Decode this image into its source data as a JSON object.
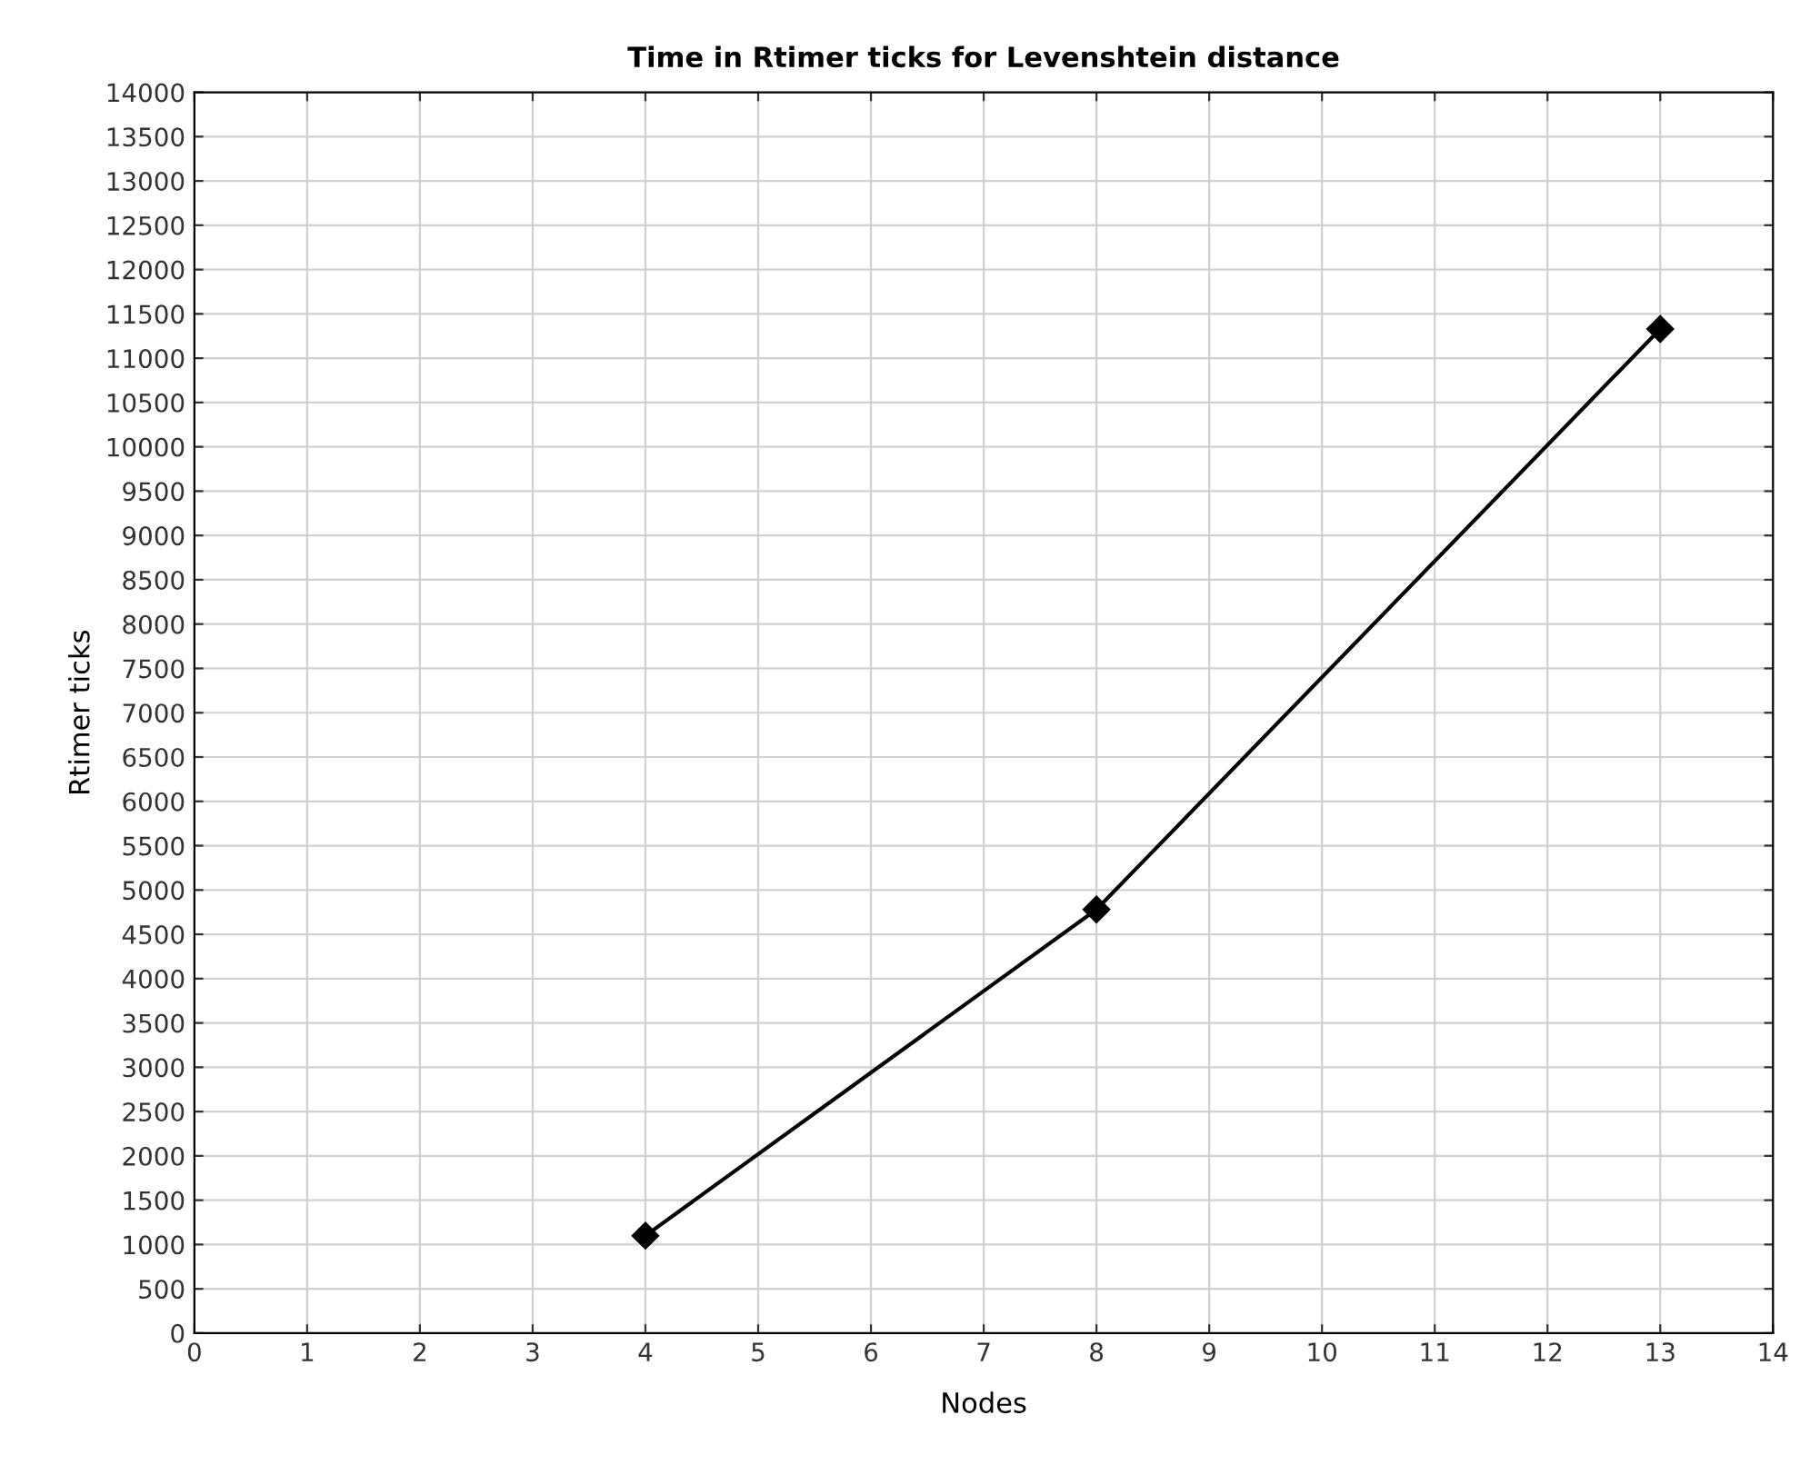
{
  "chart_data": {
    "type": "line",
    "title": "Time in Rtimer ticks for Levenshtein distance",
    "xlabel": "Nodes",
    "ylabel": "Rtimer ticks",
    "x": [
      4,
      8,
      13
    ],
    "series": [
      {
        "color": "#000000",
        "values": [
          1100,
          4780,
          11330
        ]
      }
    ],
    "xlim": [
      0,
      14
    ],
    "xticks": [
      0,
      1,
      2,
      3,
      4,
      5,
      6,
      7,
      8,
      9,
      10,
      11,
      12,
      13,
      14
    ],
    "ylim": [
      0,
      14000
    ],
    "yticks": [
      0,
      500,
      1000,
      1500,
      2000,
      2500,
      3000,
      3500,
      4000,
      4500,
      5000,
      5500,
      6000,
      6500,
      7000,
      7500,
      8000,
      8500,
      9000,
      9500,
      10000,
      10500,
      11000,
      11500,
      12000,
      12500,
      13000,
      13500,
      14000
    ],
    "grid": true,
    "marker": "diamond",
    "line_style": "solid",
    "legend": false
  }
}
